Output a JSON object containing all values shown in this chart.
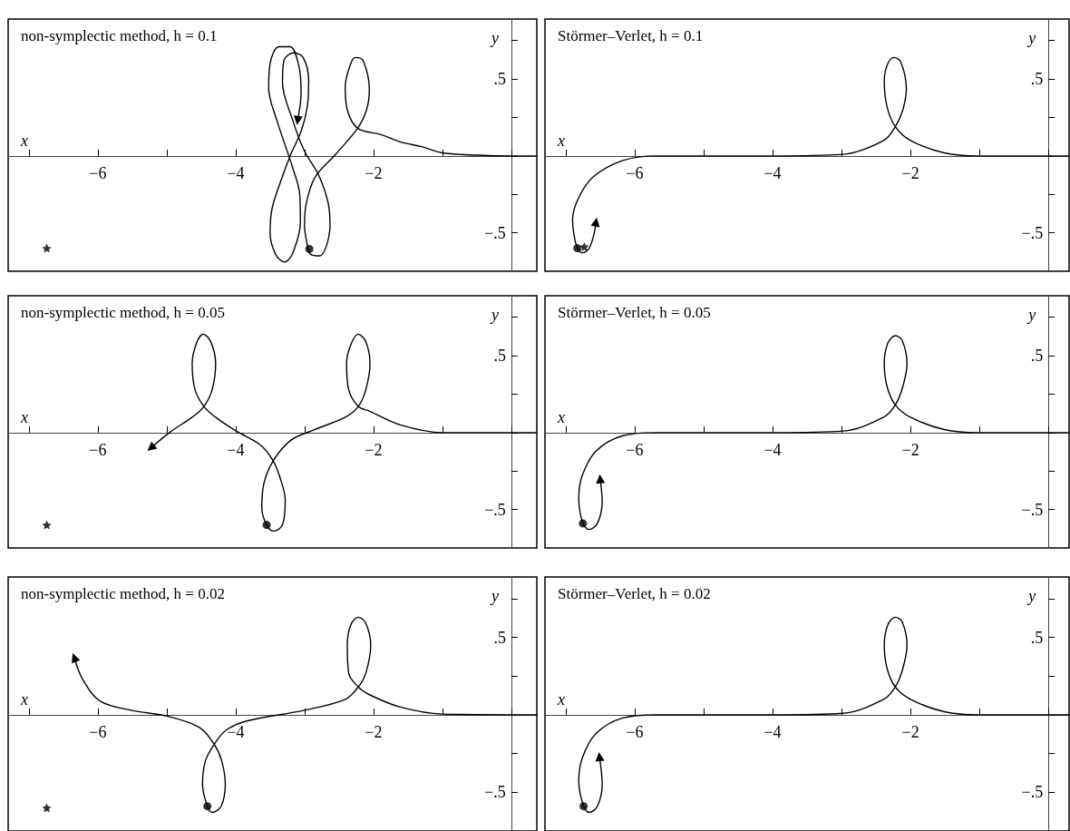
{
  "chart_data": [
    {
      "type": "line",
      "title": "non-symplectic method, h = 0.1",
      "xlabel": "x",
      "ylabel": "y",
      "xlim": [
        -7.3,
        0.37
      ],
      "ylim": [
        -0.75,
        0.89
      ],
      "xticks": [
        {
          "value": -7,
          "label": null
        },
        {
          "value": -6,
          "label": "−6"
        },
        {
          "value": -5,
          "label": null
        },
        {
          "value": -4,
          "label": "−4"
        },
        {
          "value": -3,
          "label": null
        },
        {
          "value": -2,
          "label": "−2"
        },
        {
          "value": -1,
          "label": null
        },
        {
          "value": 0,
          "label": null
        }
      ],
      "yticks": [
        {
          "value": -0.5,
          "label": "−.5"
        },
        {
          "value": -0.25,
          "label": null
        },
        {
          "value": 0,
          "label": null
        },
        {
          "value": 0.25,
          "label": null
        },
        {
          "value": 0.5,
          "label": ".5"
        },
        {
          "value": 0.75,
          "label": null
        }
      ],
      "series": [
        {
          "type": "line",
          "color": "#000000",
          "x": [
            0.37,
            0,
            -0.5,
            -1,
            -1.3,
            -1.6,
            -1.9,
            -2.23,
            -2.38,
            -2.41,
            -2.33,
            -2.26,
            -2.15,
            -2.06,
            -2.1,
            -2.23,
            -2.55,
            -2.85,
            -2.98,
            -3.0,
            -2.96,
            -2.91,
            -2.78,
            -2.63,
            -2.66,
            -2.8,
            -3.0,
            -3.17,
            -3.32,
            -3.3,
            -3.16,
            -3.02,
            -2.94,
            -2.96,
            -3.05,
            -3.2,
            -3.35,
            -3.47,
            -3.5,
            -3.42,
            -3.29,
            -3.17,
            -3.06,
            -3.07,
            -3.17,
            -3.4,
            -3.52,
            -3.5,
            -3.37,
            -3.21,
            -3.08,
            -3.05,
            -3.1
          ],
          "values": [
            0,
            0,
            0.005,
            0.02,
            0.06,
            0.09,
            0.14,
            0.18,
            0.3,
            0.45,
            0.6,
            0.64,
            0.62,
            0.43,
            0.3,
            0.18,
            0.01,
            -0.14,
            -0.32,
            -0.45,
            -0.58,
            -0.64,
            -0.65,
            -0.45,
            -0.3,
            -0.12,
            0.03,
            0.23,
            0.48,
            0.62,
            0.67,
            0.64,
            0.49,
            0.32,
            0.16,
            0.01,
            -0.17,
            -0.34,
            -0.5,
            -0.64,
            -0.69,
            -0.63,
            -0.43,
            -0.25,
            -0.08,
            0.23,
            0.44,
            0.6,
            0.71,
            0.71,
            0.58,
            0.41,
            0.23
          ]
        },
        {
          "type": "scatter",
          "marker": "star",
          "color": "#000000",
          "x": [
            -6.74
          ],
          "values": [
            -0.6
          ]
        },
        {
          "type": "scatter",
          "marker": "circle",
          "color": "#000000",
          "x": [
            -2.93
          ],
          "values": [
            -0.605
          ]
        }
      ]
    },
    {
      "type": "line",
      "title": "Störmer–Verlet, h = 0.1",
      "xlabel": "x",
      "ylabel": "y",
      "xlim": [
        -7.3,
        0.3
      ],
      "ylim": [
        -0.75,
        0.89
      ],
      "xticks": [
        {
          "value": -7,
          "label": null
        },
        {
          "value": -6,
          "label": "−6"
        },
        {
          "value": -5,
          "label": null
        },
        {
          "value": -4,
          "label": "−4"
        },
        {
          "value": -3,
          "label": null
        },
        {
          "value": -2,
          "label": "−2"
        },
        {
          "value": -1,
          "label": null
        },
        {
          "value": 0,
          "label": null
        }
      ],
      "yticks": [
        {
          "value": -0.5,
          "label": "−.5"
        },
        {
          "value": -0.25,
          "label": null
        },
        {
          "value": 0,
          "label": null
        },
        {
          "value": 0.25,
          "label": null
        },
        {
          "value": 0.5,
          "label": ".5"
        },
        {
          "value": 0.75,
          "label": null
        }
      ],
      "series": [
        {
          "type": "line",
          "color": "#000000",
          "x": [
            0.3,
            -0.5,
            -1.02,
            -1.51,
            -2.0,
            -2.22,
            -2.34,
            -2.38,
            -2.33,
            -2.24,
            -2.14,
            -2.06,
            -2.11,
            -2.22,
            -2.39,
            -2.98,
            -3.96,
            -4.94,
            -5.68,
            -6.17,
            -6.61,
            -6.83,
            -6.9,
            -6.88,
            -6.83,
            -6.76,
            -6.66,
            -6.59,
            -6.56
          ],
          "values": [
            0,
            0,
            0,
            0.02,
            0.1,
            0.19,
            0.32,
            0.49,
            0.6,
            0.64,
            0.61,
            0.44,
            0.3,
            0.19,
            0.1,
            0.01,
            0,
            0,
            0,
            -0.03,
            -0.14,
            -0.29,
            -0.42,
            -0.51,
            -0.6,
            -0.63,
            -0.6,
            -0.51,
            -0.43
          ]
        },
        {
          "type": "scatter",
          "marker": "star",
          "color": "#000000",
          "x": [
            -6.73
          ],
          "values": [
            -0.59
          ]
        },
        {
          "type": "scatter",
          "marker": "circle",
          "color": "#000000",
          "x": [
            -6.83
          ],
          "values": [
            -0.6
          ]
        }
      ]
    },
    {
      "type": "line",
      "title": "non-symplectic method, h = 0.05",
      "xlabel": "x",
      "ylabel": "y",
      "xlim": [
        -7.3,
        0.37
      ],
      "ylim": [
        -0.75,
        0.89
      ],
      "xticks": [
        {
          "value": -7,
          "label": null
        },
        {
          "value": -6,
          "label": "−6"
        },
        {
          "value": -5,
          "label": null
        },
        {
          "value": -4,
          "label": "−4"
        },
        {
          "value": -3,
          "label": null
        },
        {
          "value": -2,
          "label": "−2"
        },
        {
          "value": -1,
          "label": null
        },
        {
          "value": 0,
          "label": null
        }
      ],
      "yticks": [
        {
          "value": -0.5,
          "label": "−.5"
        },
        {
          "value": -0.25,
          "label": null
        },
        {
          "value": 0,
          "label": null
        },
        {
          "value": 0.25,
          "label": null
        },
        {
          "value": 0.5,
          "label": ".5"
        },
        {
          "value": 0.75,
          "label": null
        }
      ],
      "series": [
        {
          "type": "line",
          "color": "#000000",
          "x": [
            0.37,
            -1,
            -1.61,
            -2.06,
            -2.22,
            -2.36,
            -2.39,
            -2.33,
            -2.22,
            -2.11,
            -2.05,
            -2.11,
            -2.22,
            -2.41,
            -2.85,
            -3.2,
            -3.45,
            -3.59,
            -3.62,
            -3.55,
            -3.45,
            -3.32,
            -3.28,
            -3.35,
            -3.46,
            -3.64,
            -3.99,
            -4.29,
            -4.46,
            -4.59,
            -4.63,
            -4.56,
            -4.47,
            -4.36,
            -4.29,
            -4.34,
            -4.46,
            -4.63,
            -4.93,
            -5.23
          ],
          "values": [
            0,
            0,
            0.05,
            0.14,
            0.17,
            0.28,
            0.45,
            0.57,
            0.64,
            0.59,
            0.45,
            0.28,
            0.17,
            0.1,
            0.02,
            -0.05,
            -0.18,
            -0.33,
            -0.49,
            -0.6,
            -0.64,
            -0.6,
            -0.44,
            -0.3,
            -0.18,
            -0.08,
            0.01,
            0.1,
            0.17,
            0.28,
            0.45,
            0.59,
            0.64,
            0.59,
            0.45,
            0.28,
            0.17,
            0.1,
            0.01,
            -0.1
          ]
        },
        {
          "type": "scatter",
          "marker": "star",
          "color": "#000000",
          "x": [
            -6.74
          ],
          "values": [
            -0.6
          ]
        },
        {
          "type": "scatter",
          "marker": "circle",
          "color": "#000000",
          "x": [
            -3.55
          ],
          "values": [
            -0.6
          ]
        }
      ]
    },
    {
      "type": "line",
      "title": "Störmer–Verlet, h = 0.05",
      "xlabel": "x",
      "ylabel": "y",
      "xlim": [
        -7.3,
        0.3
      ],
      "ylim": [
        -0.75,
        0.89
      ],
      "xticks": [
        {
          "value": -7,
          "label": null
        },
        {
          "value": -6,
          "label": "−6"
        },
        {
          "value": -5,
          "label": null
        },
        {
          "value": -4,
          "label": "−4"
        },
        {
          "value": -3,
          "label": null
        },
        {
          "value": -2,
          "label": "−2"
        },
        {
          "value": -1,
          "label": null
        },
        {
          "value": 0,
          "label": null
        }
      ],
      "yticks": [
        {
          "value": -0.5,
          "label": "−.5"
        },
        {
          "value": -0.25,
          "label": null
        },
        {
          "value": 0,
          "label": null
        },
        {
          "value": 0.25,
          "label": null
        },
        {
          "value": 0.5,
          "label": ".5"
        },
        {
          "value": 0.75,
          "label": null
        }
      ],
      "series": [
        {
          "type": "line",
          "color": "#000000",
          "x": [
            0.3,
            -0.5,
            -1.02,
            -1.51,
            -2.0,
            -2.22,
            -2.34,
            -2.38,
            -2.33,
            -2.22,
            -2.12,
            -2.05,
            -2.11,
            -2.22,
            -2.39,
            -2.98,
            -3.96,
            -4.94,
            -5.68,
            -6.17,
            -6.56,
            -6.76,
            -6.81,
            -6.75,
            -6.66,
            -6.54,
            -6.47,
            -6.5
          ],
          "values": [
            0,
            0,
            0,
            0.02,
            0.1,
            0.18,
            0.3,
            0.45,
            0.58,
            0.63,
            0.6,
            0.45,
            0.3,
            0.18,
            0.1,
            0.01,
            0,
            0,
            0,
            -0.02,
            -0.12,
            -0.28,
            -0.43,
            -0.59,
            -0.63,
            -0.59,
            -0.45,
            -0.3
          ]
        },
        {
          "type": "scatter",
          "marker": "circle",
          "color": "#000000",
          "x": [
            -6.75
          ],
          "values": [
            -0.59
          ]
        }
      ]
    },
    {
      "type": "line",
      "title": "non-symplectic method, h = 0.02",
      "xlabel": "x",
      "ylabel": "y",
      "xlim": [
        -7.3,
        0.37
      ],
      "ylim": [
        -0.75,
        0.89
      ],
      "xticks": [
        {
          "value": -7,
          "label": null
        },
        {
          "value": -6,
          "label": "−6"
        },
        {
          "value": -5,
          "label": null
        },
        {
          "value": -4,
          "label": "−4"
        },
        {
          "value": -3,
          "label": null
        },
        {
          "value": -2,
          "label": "−2"
        },
        {
          "value": -1,
          "label": null
        },
        {
          "value": 0,
          "label": null
        }
      ],
      "yticks": [
        {
          "value": -0.5,
          "label": "−.5"
        },
        {
          "value": -0.25,
          "label": null
        },
        {
          "value": 0,
          "label": null
        },
        {
          "value": 0.25,
          "label": null
        },
        {
          "value": 0.5,
          "label": ".5"
        },
        {
          "value": 0.75,
          "label": null
        }
      ],
      "series": [
        {
          "type": "line",
          "color": "#000000",
          "x": [
            0.37,
            -1,
            -1.61,
            -2.06,
            -2.22,
            -2.36,
            -2.38,
            -2.33,
            -2.22,
            -2.11,
            -2.04,
            -2.11,
            -2.22,
            -2.41,
            -3.0,
            -3.84,
            -4.14,
            -4.31,
            -4.44,
            -4.48,
            -4.41,
            -4.34,
            -4.21,
            -4.15,
            -4.2,
            -4.31,
            -4.53,
            -4.98,
            -5.52,
            -5.97,
            -6.22,
            -6.34
          ],
          "values": [
            0,
            0.005,
            0.05,
            0.13,
            0.18,
            0.27,
            0.45,
            0.58,
            0.63,
            0.59,
            0.45,
            0.27,
            0.18,
            0.1,
            0.03,
            -0.04,
            -0.1,
            -0.19,
            -0.3,
            -0.45,
            -0.59,
            -0.63,
            -0.59,
            -0.45,
            -0.3,
            -0.19,
            -0.08,
            -0.01,
            0.03,
            0.09,
            0.23,
            0.37
          ]
        },
        {
          "type": "scatter",
          "marker": "star",
          "color": "#000000",
          "x": [
            -6.74
          ],
          "values": [
            -0.6
          ]
        },
        {
          "type": "scatter",
          "marker": "circle",
          "color": "#000000",
          "x": [
            -4.41
          ],
          "values": [
            -0.59
          ]
        }
      ]
    },
    {
      "type": "line",
      "title": "Störmer–Verlet, h = 0.02",
      "xlabel": "x",
      "ylabel": "y",
      "xlim": [
        -7.3,
        0.3
      ],
      "ylim": [
        -0.75,
        0.89
      ],
      "xticks": [
        {
          "value": -7,
          "label": null
        },
        {
          "value": -6,
          "label": "−6"
        },
        {
          "value": -5,
          "label": null
        },
        {
          "value": -4,
          "label": "−4"
        },
        {
          "value": -3,
          "label": null
        },
        {
          "value": -2,
          "label": "−2"
        },
        {
          "value": -1,
          "label": null
        },
        {
          "value": 0,
          "label": null
        }
      ],
      "yticks": [
        {
          "value": -0.5,
          "label": "−.5"
        },
        {
          "value": -0.25,
          "label": null
        },
        {
          "value": 0,
          "label": null
        },
        {
          "value": 0.25,
          "label": null
        },
        {
          "value": 0.5,
          "label": ".5"
        },
        {
          "value": 0.75,
          "label": null
        }
      ],
      "series": [
        {
          "type": "line",
          "color": "#000000",
          "x": [
            0.3,
            -0.5,
            -1.02,
            -1.51,
            -2.0,
            -2.22,
            -2.34,
            -2.38,
            -2.33,
            -2.22,
            -2.12,
            -2.05,
            -2.11,
            -2.22,
            -2.39,
            -2.98,
            -3.96,
            -4.94,
            -5.68,
            -6.17,
            -6.56,
            -6.76,
            -6.81,
            -6.74,
            -6.66,
            -6.54,
            -6.47,
            -6.51
          ],
          "values": [
            0,
            0,
            0,
            0.02,
            0.1,
            0.18,
            0.3,
            0.45,
            0.58,
            0.63,
            0.6,
            0.45,
            0.3,
            0.18,
            0.1,
            0.01,
            0,
            0,
            0,
            -0.02,
            -0.12,
            -0.28,
            -0.43,
            -0.59,
            -0.63,
            -0.59,
            -0.45,
            -0.27
          ]
        },
        {
          "type": "scatter",
          "marker": "circle",
          "color": "#000000",
          "x": [
            -6.74
          ],
          "values": [
            -0.59
          ]
        }
      ]
    }
  ]
}
